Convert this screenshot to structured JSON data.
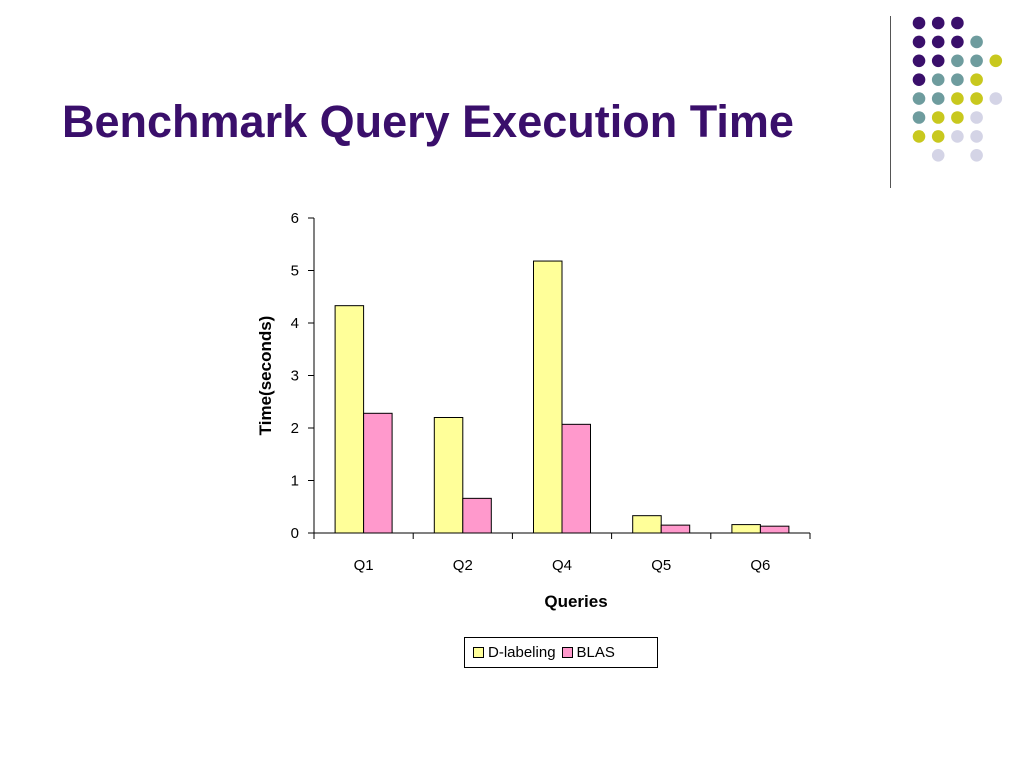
{
  "slide": {
    "title": "Benchmark Query Execution Time"
  },
  "colors": {
    "title": "#3a0f6b",
    "dot_purple": "#3a0f6b",
    "dot_teal": "#6e9c9e",
    "dot_yellow": "#c8c81e",
    "dot_lavender": "#d4d4e6"
  },
  "decoration": {
    "dot_grid": [
      [
        "purple",
        "purple",
        "purple",
        "",
        ""
      ],
      [
        "purple",
        "purple",
        "purple",
        "teal",
        ""
      ],
      [
        "purple",
        "purple",
        "teal",
        "teal",
        "yellow"
      ],
      [
        "purple",
        "teal",
        "teal",
        "yellow",
        ""
      ],
      [
        "teal",
        "teal",
        "yellow",
        "yellow",
        "lavender"
      ],
      [
        "teal",
        "yellow",
        "yellow",
        "lavender",
        ""
      ],
      [
        "yellow",
        "yellow",
        "lavender",
        "lavender",
        ""
      ],
      [
        "",
        "lavender",
        "",
        "lavender",
        ""
      ]
    ]
  },
  "chart_data": {
    "type": "bar",
    "categories": [
      "Q1",
      "Q2",
      "Q4",
      "Q5",
      "Q6"
    ],
    "series": [
      {
        "name": "D-labeling",
        "values": [
          4.33,
          2.2,
          5.18,
          0.33,
          0.16
        ],
        "color": "#ffff99"
      },
      {
        "name": "BLAS",
        "values": [
          2.28,
          0.66,
          2.07,
          0.15,
          0.13
        ],
        "color": "#ff99cc"
      }
    ],
    "xlabel": "Queries",
    "ylabel": "Time(seconds)",
    "ylim": [
      0,
      6
    ],
    "yticks": [
      "0",
      "1",
      "2",
      "3",
      "4",
      "5",
      "6"
    ],
    "grid": false,
    "legend_position": "bottom"
  }
}
